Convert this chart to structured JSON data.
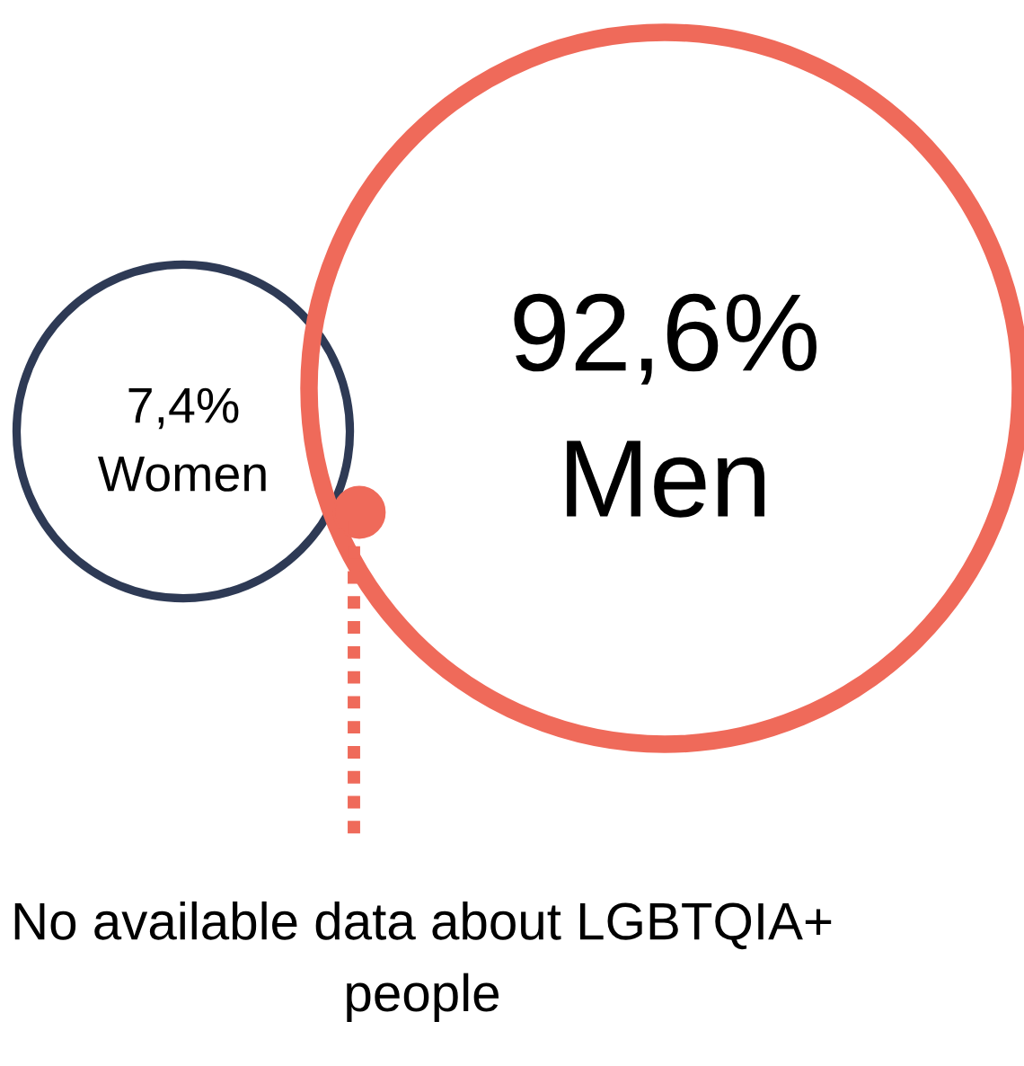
{
  "chart_data": {
    "type": "other",
    "categories": [
      "Women",
      "Men"
    ],
    "values": [
      7.4,
      92.6
    ],
    "value_labels": [
      "7,4%",
      "92,6%"
    ],
    "colors": [
      "#2e3a55",
      "#ef6a5a"
    ],
    "annotations": [
      "No available data about LGBTQIA+ people"
    ]
  }
}
